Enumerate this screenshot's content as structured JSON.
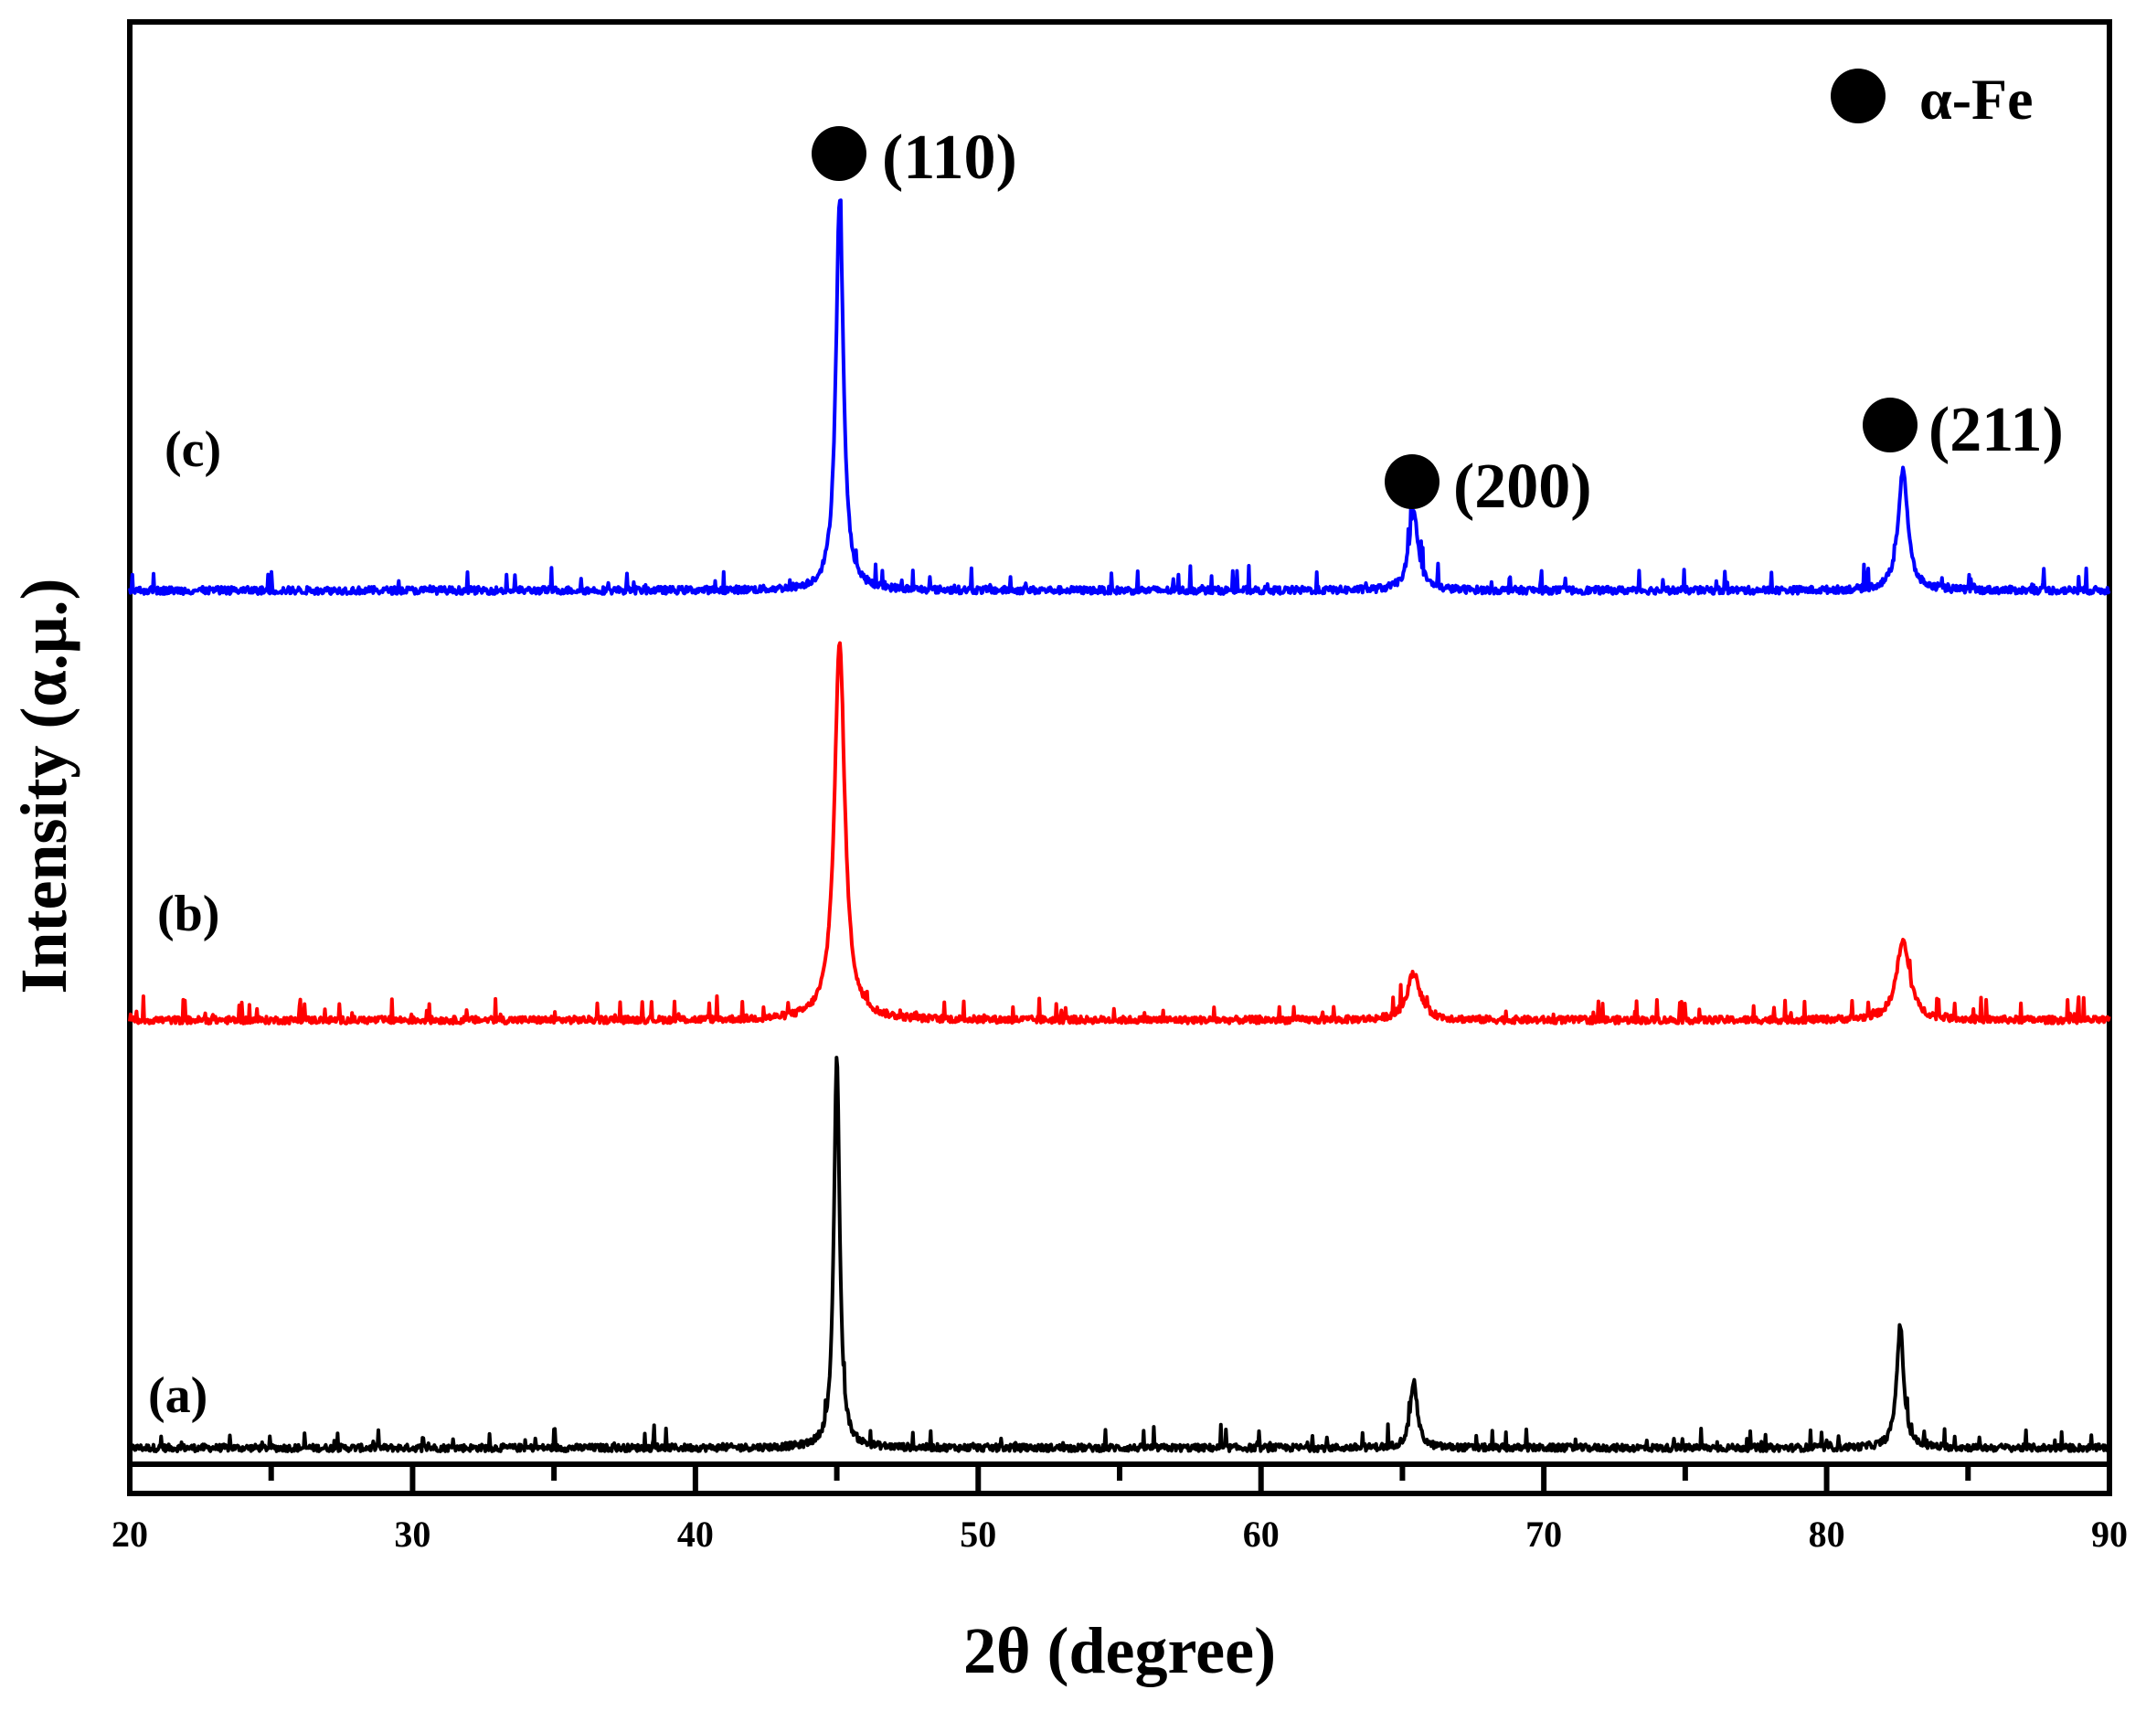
{
  "chart_data": {
    "type": "line",
    "xlabel": "2θ (degree)",
    "ylabel": "Intensity (α.μ.)",
    "xlim": [
      20,
      90
    ],
    "xticks": [
      "20",
      "30",
      "40",
      "50",
      "60",
      "70",
      "80",
      "90"
    ],
    "y_ticks_shown": false,
    "grid": false,
    "legend": {
      "marker": "filled-circle",
      "label": "α-Fe",
      "placement": "top-right"
    },
    "series": [
      {
        "name": "(a)",
        "color": "#000000",
        "baseline": 0,
        "noise": 0.03,
        "peaks": [
          {
            "x": 45.0,
            "height": 1.0,
            "width": 0.12
          },
          {
            "x": 65.4,
            "height": 0.17,
            "width": 0.15
          },
          {
            "x": 82.6,
            "height": 0.31,
            "width": 0.15
          }
        ]
      },
      {
        "name": "(b)",
        "color": "#ff0000",
        "baseline": 0,
        "noise": 0.03,
        "peaks": [
          {
            "x": 45.1,
            "height": 0.96,
            "width": 0.22
          },
          {
            "x": 65.4,
            "height": 0.12,
            "width": 0.28
          },
          {
            "x": 82.7,
            "height": 0.2,
            "width": 0.28
          }
        ]
      },
      {
        "name": "(c)",
        "color": "#0000ff",
        "baseline": 0,
        "noise": 0.03,
        "peaks": [
          {
            "x": 45.1,
            "height": 0.96,
            "width": 0.16
          },
          {
            "x": 65.4,
            "height": 0.19,
            "width": 0.2
          },
          {
            "x": 82.7,
            "height": 0.3,
            "width": 0.2
          }
        ]
      }
    ],
    "peak_annotations": [
      {
        "label": "(110)",
        "x": 45.1,
        "marker": "filled-circle"
      },
      {
        "label": "(200)",
        "x": 65.4,
        "marker": "filled-circle"
      },
      {
        "label": "(211)",
        "x": 82.6,
        "marker": "filled-circle"
      }
    ]
  }
}
